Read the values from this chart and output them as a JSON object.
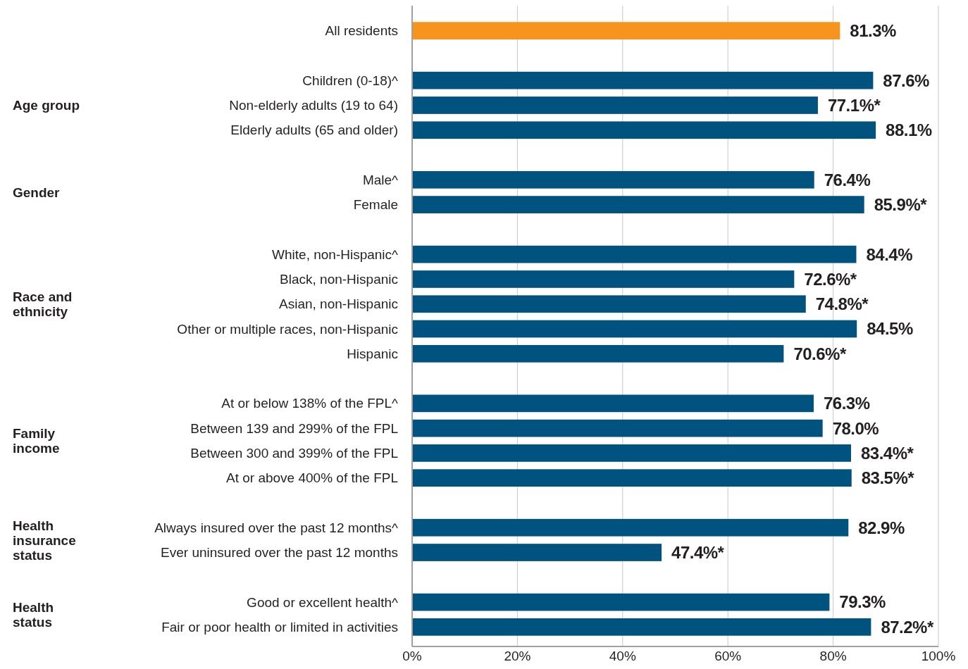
{
  "chart_data": {
    "type": "bar",
    "orientation": "horizontal",
    "categories": [
      "All residents",
      null,
      "Children (0-18)^",
      "Non-elderly adults (19 to 64)",
      "Elderly adults (65 and older)",
      null,
      "Male^",
      "Female",
      null,
      "White, non-Hispanic^",
      "Black, non-Hispanic",
      "Asian, non-Hispanic",
      "Other or multiple races, non-Hispanic",
      "Hispanic",
      null,
      "At or below 138% of the FPL^",
      "Between 139 and 299% of the FPL",
      "Between 300 and 399% of the FPL",
      "At or above 400% of the FPL",
      null,
      "Always insured over the past 12 months^",
      "Ever uninsured over the past 12 months",
      null,
      "Good or excellent health^",
      "Fair or poor health or limited in activities"
    ],
    "values": [
      81.3,
      null,
      87.6,
      77.1,
      88.1,
      null,
      76.4,
      85.9,
      null,
      84.4,
      72.6,
      74.8,
      84.5,
      70.6,
      null,
      76.3,
      78.0,
      83.4,
      83.5,
      null,
      82.9,
      47.4,
      null,
      79.3,
      87.2
    ],
    "value_labels": [
      "81.3%",
      null,
      "87.6%",
      "77.1%*",
      "88.1%",
      null,
      "76.4%",
      "85.9%*",
      null,
      "84.4%",
      "72.6%*",
      "74.8%*",
      "84.5%",
      "70.6%*",
      null,
      "76.3%",
      "78.0%",
      "83.4%*",
      "83.5%*",
      null,
      "82.9%",
      "47.4%*",
      null,
      "79.3%",
      "87.2%*"
    ],
    "colors": [
      "#f7941d",
      null,
      "#00527f",
      "#00527f",
      "#00527f",
      null,
      "#00527f",
      "#00527f",
      null,
      "#00527f",
      "#00527f",
      "#00527f",
      "#00527f",
      "#00527f",
      null,
      "#00527f",
      "#00527f",
      "#00527f",
      "#00527f",
      null,
      "#00527f",
      "#00527f",
      null,
      "#00527f",
      "#00527f"
    ],
    "annotations": [
      "Age group",
      "Gender",
      "Race and\nethnicity",
      "Family\nincome",
      "Health\ninsurance\nstatus",
      "Health\nstatus"
    ],
    "xlim": [
      0,
      100
    ],
    "xticks": [
      {
        "value": 0,
        "label": "0%"
      },
      {
        "value": 20,
        "label": "20%"
      },
      {
        "value": 40,
        "label": "40%"
      },
      {
        "value": 60,
        "label": "60%"
      },
      {
        "value": 80,
        "label": "80%"
      },
      {
        "value": 100,
        "label": "100%"
      }
    ],
    "grid": "x"
  }
}
